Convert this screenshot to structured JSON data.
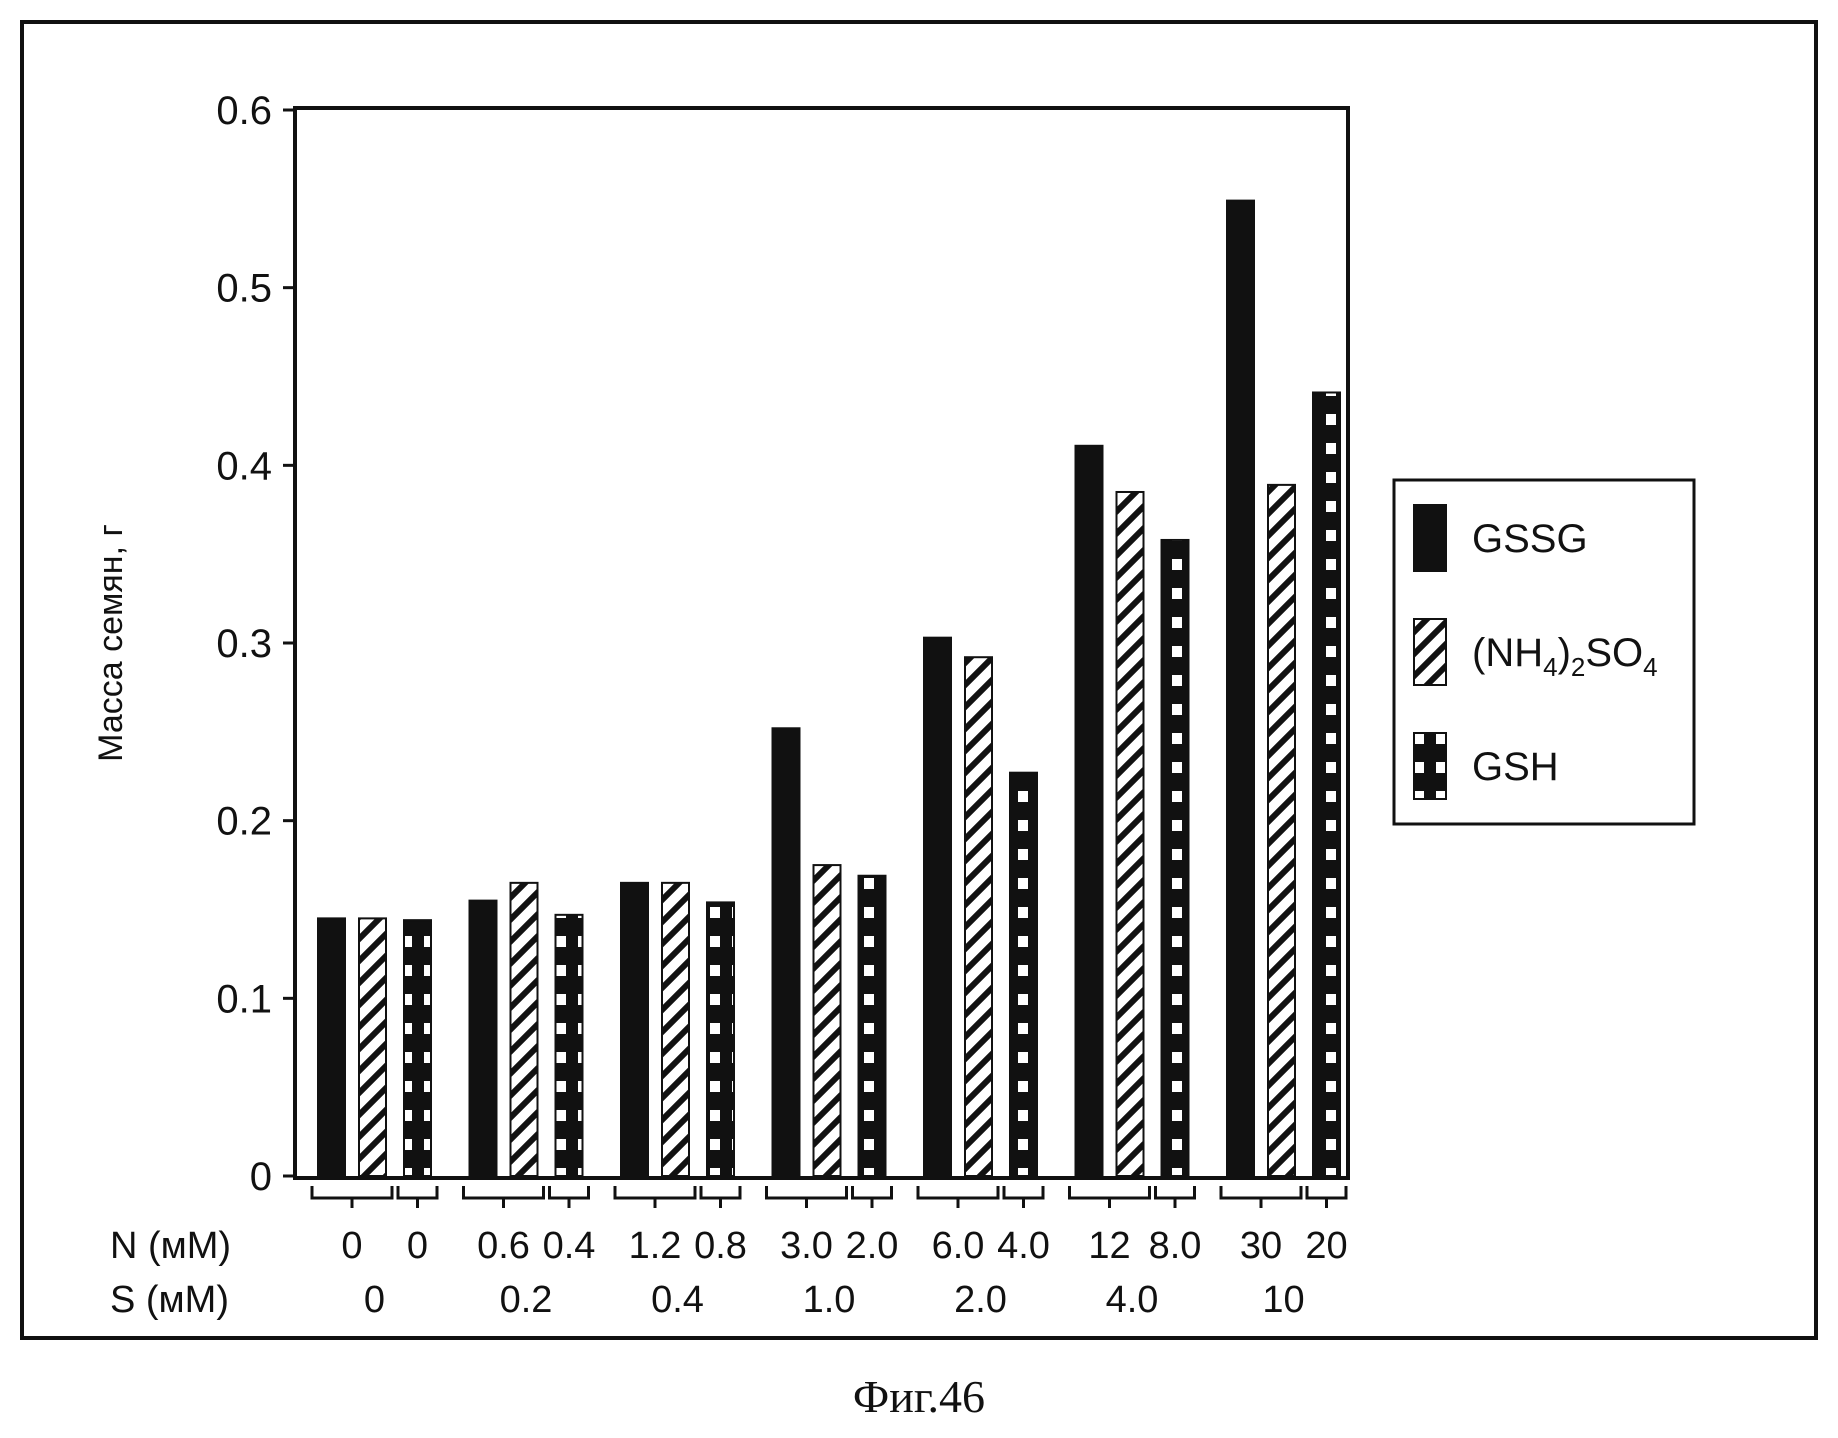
{
  "caption": "Фиг.46",
  "chart_data": {
    "type": "bar",
    "ylabel": "Масса семян, г",
    "ylim": [
      0,
      0.6
    ],
    "yticks": [
      "0",
      "0.1",
      "0.2",
      "0.3",
      "0.4",
      "0.5",
      "0.6"
    ],
    "row_labels": {
      "n": "N (мМ)",
      "s": "S (мМ)"
    },
    "groups": [
      {
        "s": "0",
        "n_gssg_nh4": "0",
        "n_gsh": "0"
      },
      {
        "s": "0.2",
        "n_gssg_nh4": "0.6",
        "n_gsh": "0.4"
      },
      {
        "s": "0.4",
        "n_gssg_nh4": "1.2",
        "n_gsh": "0.8"
      },
      {
        "s": "1.0",
        "n_gssg_nh4": "3.0",
        "n_gsh": "2.0"
      },
      {
        "s": "2.0",
        "n_gssg_nh4": "6.0",
        "n_gsh": "4.0"
      },
      {
        "s": "4.0",
        "n_gssg_nh4": "12",
        "n_gsh": "8.0"
      },
      {
        "s": "10",
        "n_gssg_nh4": "30",
        "n_gsh": "20"
      }
    ],
    "series": [
      {
        "name": "GSSG",
        "pattern": "solid",
        "values": [
          0.145,
          0.155,
          0.165,
          0.252,
          0.303,
          0.411,
          0.549
        ]
      },
      {
        "name": "(NH4)2SO4",
        "name_parts": [
          "(NH",
          "4",
          ")",
          "2",
          "SO",
          "4"
        ],
        "pattern": "hatch",
        "values": [
          0.145,
          0.165,
          0.165,
          0.175,
          0.292,
          0.385,
          0.389
        ]
      },
      {
        "name": "GSH",
        "pattern": "checker",
        "values": [
          0.144,
          0.147,
          0.154,
          0.169,
          0.227,
          0.358,
          0.441
        ]
      }
    ],
    "legend_position": "right",
    "grid": false
  }
}
